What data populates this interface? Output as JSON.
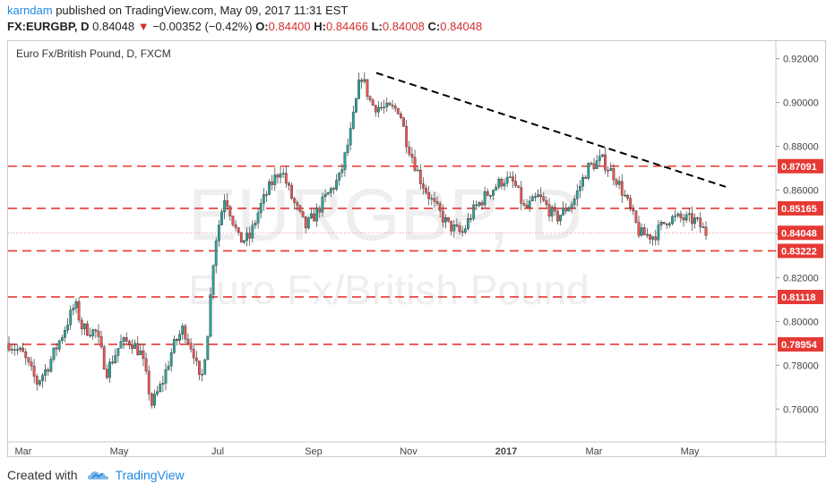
{
  "header": {
    "author": "karndam",
    "published_text": "published on TradingView.com, May 09, 2017 11:31 EST",
    "symbol": "FX:EURGBP, D",
    "last": "0.84048",
    "change_arrow": "▼",
    "change": "−0.00352 (−0.42%)",
    "o_label": "O:",
    "o": "0.84400",
    "h_label": "H:",
    "h": "0.84466",
    "l_label": "L:",
    "l": "0.84008",
    "c_label": "C:",
    "c": "0.84048"
  },
  "footer": {
    "created_with": "Created with",
    "brand": "TradingView",
    "logo_icon": "tradingview-cloud-icon"
  },
  "colors": {
    "up": "#26a69a",
    "down": "#ef5350",
    "level": "#e53935",
    "trend": "#000000",
    "watermark": "#eeeeee",
    "last_line": "#e57373"
  },
  "chart_data": {
    "type": "candlestick",
    "title": "Euro Fx/British Pound, D, FXCM",
    "watermark_symbol": "EURGBP, D",
    "watermark_name": "Euro Fx/British Pound",
    "ylim": [
      0.745,
      0.928
    ],
    "y_ticks": [
      "0.92000",
      "0.90000",
      "0.88000",
      "0.86000",
      "0.84000",
      "0.82000",
      "0.80000",
      "0.78000",
      "0.76000"
    ],
    "x_tick_labels": [
      "Mar",
      "May",
      "Jul",
      "Sep",
      "Nov",
      "2017",
      "Mar",
      "May"
    ],
    "levels": [
      0.87091,
      0.85165,
      0.83222,
      0.81118,
      0.78954
    ],
    "level_labels": [
      "0.87091",
      "0.85165",
      "0.83222",
      "0.81118",
      "0.78954"
    ],
    "last_price": 0.84048,
    "last_price_label": "0.84048",
    "trendline": {
      "from": [
        0.0,
        0.9135
      ],
      "to": [
        1.0,
        0.8615
      ]
    },
    "path": [
      [
        0.0,
        0.79
      ],
      [
        0.02,
        0.785
      ],
      [
        0.04,
        0.772
      ],
      [
        0.055,
        0.779
      ],
      [
        0.075,
        0.793
      ],
      [
        0.095,
        0.808
      ],
      [
        0.105,
        0.797
      ],
      [
        0.125,
        0.795
      ],
      [
        0.14,
        0.777
      ],
      [
        0.16,
        0.79
      ],
      [
        0.175,
        0.791
      ],
      [
        0.19,
        0.785
      ],
      [
        0.205,
        0.762
      ],
      [
        0.22,
        0.772
      ],
      [
        0.235,
        0.788
      ],
      [
        0.25,
        0.797
      ],
      [
        0.265,
        0.786
      ],
      [
        0.275,
        0.77
      ],
      [
        0.285,
        0.795
      ],
      [
        0.295,
        0.835
      ],
      [
        0.31,
        0.858
      ],
      [
        0.33,
        0.837
      ],
      [
        0.345,
        0.838
      ],
      [
        0.36,
        0.852
      ],
      [
        0.375,
        0.862
      ],
      [
        0.39,
        0.87
      ],
      [
        0.405,
        0.857
      ],
      [
        0.425,
        0.843
      ],
      [
        0.44,
        0.849
      ],
      [
        0.455,
        0.857
      ],
      [
        0.475,
        0.866
      ],
      [
        0.49,
        0.886
      ],
      [
        0.505,
        0.913
      ],
      [
        0.52,
        0.899
      ],
      [
        0.54,
        0.897
      ],
      [
        0.56,
        0.897
      ],
      [
        0.57,
        0.883
      ],
      [
        0.59,
        0.865
      ],
      [
        0.61,
        0.853
      ],
      [
        0.63,
        0.844
      ],
      [
        0.65,
        0.84
      ],
      [
        0.665,
        0.85
      ],
      [
        0.685,
        0.858
      ],
      [
        0.71,
        0.865
      ],
      [
        0.725,
        0.863
      ],
      [
        0.74,
        0.851
      ],
      [
        0.76,
        0.857
      ],
      [
        0.785,
        0.847
      ],
      [
        0.81,
        0.855
      ],
      [
        0.83,
        0.87
      ],
      [
        0.85,
        0.874
      ],
      [
        0.87,
        0.866
      ],
      [
        0.885,
        0.856
      ],
      [
        0.905,
        0.84
      ],
      [
        0.925,
        0.839
      ],
      [
        0.945,
        0.847
      ],
      [
        0.965,
        0.847
      ],
      [
        0.985,
        0.846
      ],
      [
        1.0,
        0.8405
      ]
    ]
  }
}
